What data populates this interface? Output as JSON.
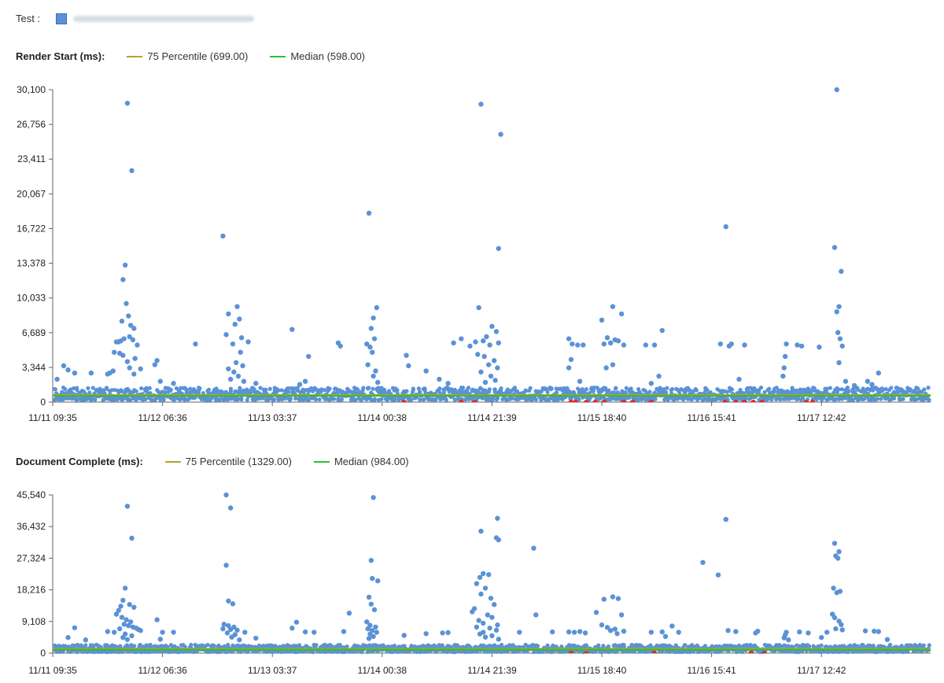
{
  "header": {
    "test_label": "Test :",
    "test_url_blurred": ""
  },
  "colors": {
    "points": "#5b92d6",
    "p75": "#b8a12a",
    "median": "#2fbf2f",
    "anomaly": "#e8231f",
    "axis": "#666666"
  },
  "chart_data": [
    {
      "type": "scatter",
      "title": "Render Start (ms):",
      "legend": [
        {
          "key": "p75",
          "label": "75 Percentile (699.00)"
        },
        {
          "key": "median",
          "label": "Median (598.00)"
        }
      ],
      "p75_value": 699,
      "median_value": 598,
      "ylim": [
        0,
        30100
      ],
      "y_ticks": [
        "0",
        "3,344",
        "6,689",
        "10,033",
        "13,378",
        "16,722",
        "20,067",
        "23,411",
        "26,756",
        "30,100"
      ],
      "x_ticks": [
        "11/11 09:35",
        "11/12 06:36",
        "11/13 03:37",
        "11/14 00:38",
        "11/14 21:39",
        "11/15 18:40",
        "11/16 15:41",
        "11/17 12:42"
      ],
      "x_range_ticks": [
        0,
        7.73
      ],
      "baseline_range": [
        200,
        1400
      ],
      "points": [
        [
          0.68,
          28800
        ],
        [
          0.72,
          22300
        ],
        [
          0.66,
          13200
        ],
        [
          0.64,
          11800
        ],
        [
          0.67,
          9500
        ],
        [
          0.69,
          8300
        ],
        [
          0.63,
          7800
        ],
        [
          0.71,
          7400
        ],
        [
          0.74,
          7100
        ],
        [
          0.6,
          5800
        ],
        [
          0.62,
          5900
        ],
        [
          0.65,
          6100
        ],
        [
          0.7,
          6300
        ],
        [
          0.73,
          6000
        ],
        [
          0.58,
          5800
        ],
        [
          0.77,
          5500
        ],
        [
          0.56,
          4800
        ],
        [
          0.61,
          4700
        ],
        [
          0.64,
          4500
        ],
        [
          0.75,
          4200
        ],
        [
          0.68,
          3900
        ],
        [
          0.52,
          2800
        ],
        [
          0.55,
          3000
        ],
        [
          0.7,
          3300
        ],
        [
          0.74,
          2700
        ],
        [
          0.8,
          3200
        ],
        [
          0.5,
          2700
        ],
        [
          0.35,
          2800
        ],
        [
          0.1,
          3500
        ],
        [
          0.14,
          3100
        ],
        [
          0.2,
          2800
        ],
        [
          0.04,
          2200
        ],
        [
          0.95,
          4000
        ],
        [
          0.93,
          3600
        ],
        [
          0.98,
          2000
        ],
        [
          1.1,
          1800
        ],
        [
          1.3,
          5600
        ],
        [
          1.55,
          16000
        ],
        [
          1.6,
          8500
        ],
        [
          1.68,
          9200
        ],
        [
          1.7,
          8000
        ],
        [
          1.66,
          7500
        ],
        [
          1.72,
          6200
        ],
        [
          1.58,
          6500
        ],
        [
          1.78,
          5800
        ],
        [
          1.64,
          5600
        ],
        [
          1.71,
          4800
        ],
        [
          1.67,
          3800
        ],
        [
          1.73,
          3500
        ],
        [
          1.6,
          3200
        ],
        [
          1.65,
          2900
        ],
        [
          1.69,
          2500
        ],
        [
          1.62,
          2200
        ],
        [
          1.74,
          2000
        ],
        [
          1.85,
          1800
        ],
        [
          2.18,
          7000
        ],
        [
          2.33,
          4400
        ],
        [
          2.3,
          2000
        ],
        [
          2.25,
          1700
        ],
        [
          2.6,
          5700
        ],
        [
          2.62,
          5400
        ],
        [
          2.88,
          18200
        ],
        [
          2.95,
          9100
        ],
        [
          2.92,
          8100
        ],
        [
          2.9,
          7100
        ],
        [
          2.93,
          6100
        ],
        [
          2.86,
          5600
        ],
        [
          2.89,
          5300
        ],
        [
          2.91,
          4800
        ],
        [
          2.87,
          3600
        ],
        [
          2.94,
          3000
        ],
        [
          2.92,
          2500
        ],
        [
          2.96,
          1900
        ],
        [
          3.22,
          4500
        ],
        [
          3.24,
          3500
        ],
        [
          3.4,
          3000
        ],
        [
          3.52,
          2200
        ],
        [
          3.6,
          1800
        ],
        [
          3.65,
          5700
        ],
        [
          3.72,
          6100
        ],
        [
          3.9,
          28700
        ],
        [
          4.08,
          25800
        ],
        [
          4.06,
          14800
        ],
        [
          3.88,
          9100
        ],
        [
          4.0,
          7300
        ],
        [
          4.04,
          6800
        ],
        [
          3.95,
          6300
        ],
        [
          3.85,
          5800
        ],
        [
          3.92,
          5900
        ],
        [
          3.98,
          5500
        ],
        [
          4.06,
          5700
        ],
        [
          3.8,
          5400
        ],
        [
          3.87,
          4600
        ],
        [
          3.93,
          4400
        ],
        [
          4.02,
          4000
        ],
        [
          3.97,
          3600
        ],
        [
          4.05,
          3300
        ],
        [
          3.9,
          2900
        ],
        [
          3.99,
          2500
        ],
        [
          4.03,
          2100
        ],
        [
          3.94,
          1900
        ],
        [
          4.7,
          6100
        ],
        [
          4.73,
          5600
        ],
        [
          4.78,
          5500
        ],
        [
          4.83,
          5500
        ],
        [
          4.72,
          4100
        ],
        [
          4.7,
          3300
        ],
        [
          4.8,
          2000
        ],
        [
          5.0,
          7900
        ],
        [
          5.1,
          9200
        ],
        [
          5.18,
          8500
        ],
        [
          5.05,
          6200
        ],
        [
          5.12,
          6000
        ],
        [
          5.15,
          5900
        ],
        [
          5.08,
          5700
        ],
        [
          5.02,
          5600
        ],
        [
          5.2,
          5500
        ],
        [
          5.1,
          3600
        ],
        [
          5.04,
          3300
        ],
        [
          5.55,
          6900
        ],
        [
          5.4,
          5500
        ],
        [
          5.48,
          5500
        ],
        [
          5.52,
          2500
        ],
        [
          5.45,
          1800
        ],
        [
          6.13,
          16900
        ],
        [
          6.08,
          5600
        ],
        [
          6.18,
          5600
        ],
        [
          6.16,
          5400
        ],
        [
          6.3,
          5500
        ],
        [
          6.25,
          2200
        ],
        [
          6.68,
          5600
        ],
        [
          6.67,
          4400
        ],
        [
          6.66,
          3300
        ],
        [
          6.65,
          2500
        ],
        [
          6.78,
          5500
        ],
        [
          6.82,
          5400
        ],
        [
          6.98,
          5300
        ],
        [
          7.14,
          30100
        ],
        [
          7.12,
          14900
        ],
        [
          7.18,
          12600
        ],
        [
          7.16,
          9200
        ],
        [
          7.14,
          8700
        ],
        [
          7.15,
          6700
        ],
        [
          7.17,
          6100
        ],
        [
          7.19,
          5400
        ],
        [
          7.16,
          3800
        ],
        [
          7.22,
          2000
        ],
        [
          7.42,
          2000
        ],
        [
          7.46,
          1700
        ],
        [
          7.52,
          2800
        ],
        [
          7.3,
          1600
        ]
      ],
      "anomalies": [
        3.2,
        3.72,
        3.84,
        4.72,
        4.76,
        4.86,
        4.94,
        5.02,
        5.2,
        5.28,
        5.45,
        6.12,
        6.22,
        6.3,
        6.38,
        6.46,
        6.86,
        6.92
      ]
    },
    {
      "type": "scatter",
      "title": "Document Complete (ms):",
      "legend": [
        {
          "key": "p75",
          "label": "75 Percentile (1329.00)"
        },
        {
          "key": "median",
          "label": "Median (984.00)"
        }
      ],
      "p75_value": 1329,
      "median_value": 984,
      "ylim": [
        0,
        45540
      ],
      "y_ticks": [
        "0",
        "9,108",
        "18,216",
        "27,324",
        "36,432",
        "45,540"
      ],
      "x_ticks": [
        "11/11 09:35",
        "11/12 06:36",
        "11/13 03:37",
        "11/14 00:38",
        "11/14 21:39",
        "11/15 18:40",
        "11/16 15:41",
        "11/17 12:42"
      ],
      "x_range_ticks": [
        0,
        7.73
      ],
      "baseline_range": [
        300,
        2400
      ],
      "points": [
        [
          0.68,
          42300
        ],
        [
          0.72,
          33100
        ],
        [
          0.66,
          18700
        ],
        [
          0.64,
          15200
        ],
        [
          0.7,
          14000
        ],
        [
          0.62,
          13500
        ],
        [
          0.74,
          13200
        ],
        [
          0.6,
          12300
        ],
        [
          0.58,
          11200
        ],
        [
          0.63,
          10300
        ],
        [
          0.67,
          9600
        ],
        [
          0.71,
          9000
        ],
        [
          0.65,
          8300
        ],
        [
          0.69,
          7900
        ],
        [
          0.73,
          7500
        ],
        [
          0.76,
          7200
        ],
        [
          0.61,
          7000
        ],
        [
          0.78,
          6800
        ],
        [
          0.8,
          6500
        ],
        [
          0.56,
          6000
        ],
        [
          0.66,
          5500
        ],
        [
          0.72,
          5000
        ],
        [
          0.64,
          4500
        ],
        [
          0.68,
          3900
        ],
        [
          0.5,
          6200
        ],
        [
          0.2,
          7300
        ],
        [
          0.14,
          4500
        ],
        [
          0.3,
          3800
        ],
        [
          0.95,
          9600
        ],
        [
          1.0,
          6000
        ],
        [
          1.1,
          6000
        ],
        [
          0.98,
          4000
        ],
        [
          1.58,
          45540
        ],
        [
          1.62,
          41800
        ],
        [
          1.58,
          25300
        ],
        [
          1.6,
          15000
        ],
        [
          1.64,
          14200
        ],
        [
          1.56,
          8300
        ],
        [
          1.6,
          7900
        ],
        [
          1.65,
          7500
        ],
        [
          1.55,
          7000
        ],
        [
          1.62,
          6800
        ],
        [
          1.68,
          6600
        ],
        [
          1.59,
          5800
        ],
        [
          1.66,
          5300
        ],
        [
          1.63,
          4600
        ],
        [
          1.7,
          3800
        ],
        [
          1.75,
          6000
        ],
        [
          1.85,
          4300
        ],
        [
          2.22,
          8900
        ],
        [
          2.18,
          7200
        ],
        [
          2.3,
          6100
        ],
        [
          2.38,
          6000
        ],
        [
          2.65,
          6200
        ],
        [
          2.7,
          11500
        ],
        [
          2.92,
          44800
        ],
        [
          2.9,
          26700
        ],
        [
          2.91,
          21500
        ],
        [
          2.96,
          20800
        ],
        [
          2.88,
          16100
        ],
        [
          2.9,
          14100
        ],
        [
          2.93,
          12500
        ],
        [
          2.86,
          9000
        ],
        [
          2.89,
          8000
        ],
        [
          2.94,
          7500
        ],
        [
          2.87,
          7000
        ],
        [
          2.91,
          6500
        ],
        [
          2.95,
          6000
        ],
        [
          2.89,
          5500
        ],
        [
          2.92,
          4800
        ],
        [
          2.88,
          4200
        ],
        [
          3.2,
          5100
        ],
        [
          3.4,
          5600
        ],
        [
          3.55,
          5800
        ],
        [
          3.6,
          5900
        ],
        [
          3.9,
          35100
        ],
        [
          4.05,
          38800
        ],
        [
          4.04,
          33200
        ],
        [
          4.06,
          32600
        ],
        [
          3.92,
          22900
        ],
        [
          3.97,
          22600
        ],
        [
          3.89,
          21800
        ],
        [
          3.86,
          20000
        ],
        [
          3.94,
          18700
        ],
        [
          3.9,
          17000
        ],
        [
          3.99,
          15800
        ],
        [
          4.02,
          14000
        ],
        [
          3.84,
          12800
        ],
        [
          3.82,
          11900
        ],
        [
          3.96,
          11000
        ],
        [
          4.0,
          10300
        ],
        [
          3.88,
          9400
        ],
        [
          3.92,
          8600
        ],
        [
          4.05,
          8100
        ],
        [
          3.86,
          7500
        ],
        [
          3.98,
          7200
        ],
        [
          4.04,
          6600
        ],
        [
          3.92,
          6000
        ],
        [
          3.89,
          5500
        ],
        [
          4.0,
          5000
        ],
        [
          3.94,
          4600
        ],
        [
          4.06,
          4000
        ],
        [
          4.25,
          6000
        ],
        [
          4.38,
          30200
        ],
        [
          4.7,
          6100
        ],
        [
          4.75,
          6000
        ],
        [
          4.8,
          6200
        ],
        [
          4.85,
          5800
        ],
        [
          4.55,
          6100
        ],
        [
          4.4,
          11000
        ],
        [
          4.95,
          11700
        ],
        [
          5.02,
          15500
        ],
        [
          5.1,
          16200
        ],
        [
          5.15,
          15700
        ],
        [
          5.18,
          11000
        ],
        [
          5.0,
          8100
        ],
        [
          5.05,
          7400
        ],
        [
          5.12,
          6900
        ],
        [
          5.08,
          6500
        ],
        [
          5.2,
          6300
        ],
        [
          5.14,
          5600
        ],
        [
          5.45,
          6000
        ],
        [
          5.55,
          6100
        ],
        [
          5.64,
          7800
        ],
        [
          5.58,
          4800
        ],
        [
          5.7,
          6000
        ],
        [
          5.92,
          26100
        ],
        [
          6.06,
          22500
        ],
        [
          6.13,
          38500
        ],
        [
          6.15,
          6500
        ],
        [
          6.22,
          6200
        ],
        [
          6.42,
          6300
        ],
        [
          6.4,
          5800
        ],
        [
          6.68,
          6000
        ],
        [
          6.67,
          5200
        ],
        [
          6.66,
          4400
        ],
        [
          6.7,
          3800
        ],
        [
          6.8,
          6100
        ],
        [
          6.88,
          5800
        ],
        [
          7.0,
          4500
        ],
        [
          7.05,
          6000
        ],
        [
          7.12,
          31600
        ],
        [
          7.16,
          29200
        ],
        [
          7.13,
          28000
        ],
        [
          7.15,
          27300
        ],
        [
          7.11,
          18700
        ],
        [
          7.14,
          17400
        ],
        [
          7.17,
          17800
        ],
        [
          7.1,
          11200
        ],
        [
          7.12,
          10200
        ],
        [
          7.16,
          9200
        ],
        [
          7.18,
          8200
        ],
        [
          7.13,
          7000
        ],
        [
          7.19,
          6700
        ],
        [
          7.4,
          6400
        ],
        [
          7.48,
          6300
        ],
        [
          7.52,
          6200
        ],
        [
          7.6,
          3900
        ]
      ],
      "anomalies": [
        4.72,
        4.86,
        5.48,
        6.36,
        6.48
      ]
    }
  ]
}
